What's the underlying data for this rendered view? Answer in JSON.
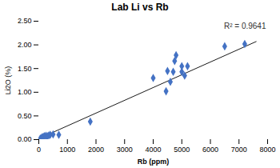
{
  "chart_data": {
    "type": "scatter",
    "title": "Lab Li vs Rb",
    "x_label": "Rb (ppm)",
    "y_label": "Li2O (%)",
    "annotation": "R² = 0.9641",
    "series": [
      {
        "type": "scatter",
        "color": "#4472C4",
        "marker": "diamond",
        "x": [
          50,
          80,
          120,
          160,
          200,
          250,
          300,
          350,
          400,
          500,
          700,
          1800,
          4000,
          4450,
          4500,
          4600,
          4700,
          4750,
          4800,
          5000,
          5000,
          5100,
          5200,
          6500,
          7200
        ],
        "values": [
          0.02,
          0.03,
          0.05,
          0.06,
          0.07,
          0.08,
          0.07,
          0.09,
          0.1,
          0.11,
          0.1,
          0.38,
          1.3,
          1.02,
          1.45,
          1.22,
          1.43,
          1.66,
          1.78,
          1.43,
          1.55,
          1.35,
          1.55,
          1.97,
          2.02
        ]
      },
      {
        "type": "line",
        "color": "#1a1a1a",
        "x": [
          0,
          7600
        ],
        "values": [
          0.02,
          2.07
        ]
      }
    ],
    "xlim": [
      0,
      8000
    ],
    "ylim": [
      0,
      2.5
    ],
    "xticks": [
      0,
      1000,
      2000,
      3000,
      4000,
      5000,
      6000,
      7000,
      8000
    ],
    "yticks": [
      {
        "value": 0,
        "label": "0.00"
      },
      {
        "value": 0.5,
        "label": "0.50"
      },
      {
        "value": 1,
        "label": "1.00"
      },
      {
        "value": 1.5,
        "label": "1.50"
      },
      {
        "value": 2,
        "label": "2.00"
      },
      {
        "value": 2.5,
        "label": "2.50"
      }
    ],
    "grid": false
  }
}
